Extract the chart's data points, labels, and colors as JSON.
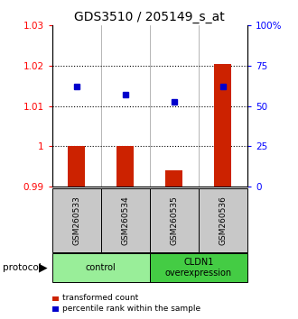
{
  "title": "GDS3510 / 205149_s_at",
  "samples": [
    "GSM260533",
    "GSM260534",
    "GSM260535",
    "GSM260536"
  ],
  "red_values": [
    1.0002,
    1.0002,
    0.994,
    1.0205
  ],
  "blue_values": [
    1.0148,
    1.0128,
    1.011,
    1.0148
  ],
  "ylim_left": [
    0.99,
    1.03
  ],
  "ylim_right": [
    0,
    100
  ],
  "yticks_left": [
    0.99,
    1.0,
    1.01,
    1.02,
    1.03
  ],
  "ytick_labels_left": [
    "0.99",
    "1",
    "1.01",
    "1.02",
    "1.03"
  ],
  "yticks_right": [
    0,
    25,
    50,
    75,
    100
  ],
  "ytick_labels_right": [
    "0",
    "25",
    "50",
    "75",
    "100%"
  ],
  "hlines": [
    1.02,
    1.01,
    1.0
  ],
  "bar_bottom": 0.99,
  "bar_color": "#cc2200",
  "dot_color": "#0000cc",
  "groups": [
    {
      "label": "control",
      "samples": [
        0,
        1
      ],
      "color": "#99ee99"
    },
    {
      "label": "CLDN1\noverexpression",
      "samples": [
        2,
        3
      ],
      "color": "#44cc44"
    }
  ],
  "protocol_label": "protocol",
  "legend_items": [
    {
      "color": "#cc2200",
      "label": "transformed count"
    },
    {
      "color": "#0000cc",
      "label": "percentile rank within the sample"
    }
  ],
  "background_color": "#ffffff",
  "sample_box_color": "#c8c8c8",
  "title_fontsize": 10,
  "tick_fontsize": 7.5,
  "bar_width": 0.35
}
